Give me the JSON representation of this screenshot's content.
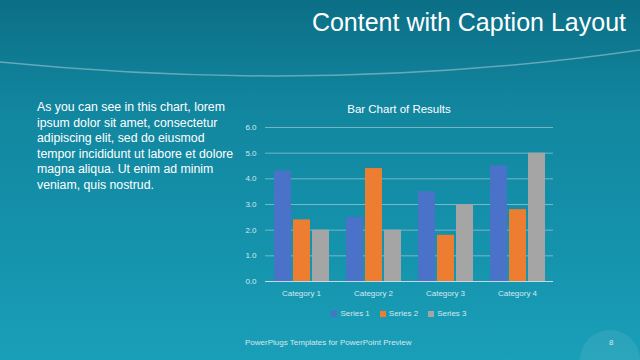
{
  "slide": {
    "title": "Content with Caption Layout",
    "caption": "As you can see in this chart, lorem ipsum dolor sit amet, consectetur adipiscing elit, sed do eiusmod tempor incididunt ut labore et dolore magna aliqua. Ut enim ad minim veniam, quis nostrud.",
    "footer": "PowerPlugs Templates for PowerPoint Preview",
    "page": "8"
  },
  "chart_data": {
    "type": "bar",
    "title": "Bar Chart of Results",
    "categories": [
      "Category 1",
      "Category 2",
      "Category 3",
      "Category 4"
    ],
    "series": [
      {
        "name": "Series 1",
        "color": "#4a72c8",
        "values": [
          4.3,
          2.5,
          3.5,
          4.5
        ]
      },
      {
        "name": "Series 2",
        "color": "#ed7d31",
        "values": [
          2.4,
          4.4,
          1.8,
          2.8
        ]
      },
      {
        "name": "Series 3",
        "color": "#a5a5a5",
        "values": [
          2,
          2,
          3,
          5
        ]
      }
    ],
    "ylim": [
      0,
      6
    ],
    "yticks": [
      0,
      1,
      2,
      3,
      4,
      5,
      6
    ],
    "grid": true,
    "legend": "bottom"
  }
}
